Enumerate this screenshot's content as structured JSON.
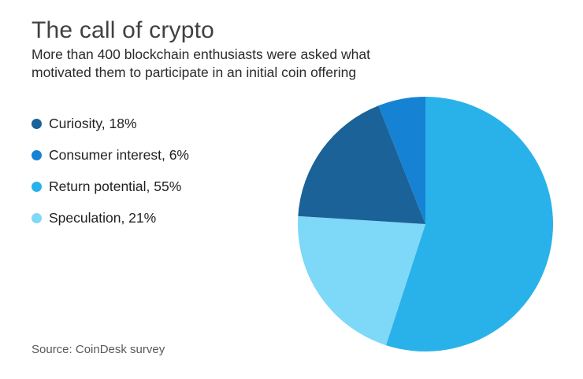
{
  "page": {
    "title": "The call of crypto",
    "subtitle": "More than 400 blockchain enthusiasts were asked what motivated them to participate in an initial coin offering",
    "source": "Source: CoinDesk survey"
  },
  "chart_data": {
    "type": "pie",
    "title": "The call of crypto",
    "subtitle": "More than 400 blockchain enthusiasts were asked what motivated them to participate in an initial coin offering",
    "source": "Source: CoinDesk survey",
    "unit": "%",
    "slices": [
      {
        "label": "Curiosity",
        "value": 18,
        "color": "#1a6298",
        "legend_text": "Curiosity, 18%"
      },
      {
        "label": "Consumer interest",
        "value": 6,
        "color": "#1682d4",
        "legend_text": "Consumer interest, 6%"
      },
      {
        "label": "Return potential",
        "value": 55,
        "color": "#29b2ea",
        "legend_text": "Return potential, 55%"
      },
      {
        "label": "Speculation",
        "value": 21,
        "color": "#7ed8f8",
        "legend_text": "Speculation, 21%"
      }
    ],
    "layout": {
      "start_angle_deg": 0,
      "clockwise": true,
      "draw_order": [
        2,
        3,
        0,
        1
      ],
      "legend_position": "left",
      "background": "#ffffff"
    }
  }
}
